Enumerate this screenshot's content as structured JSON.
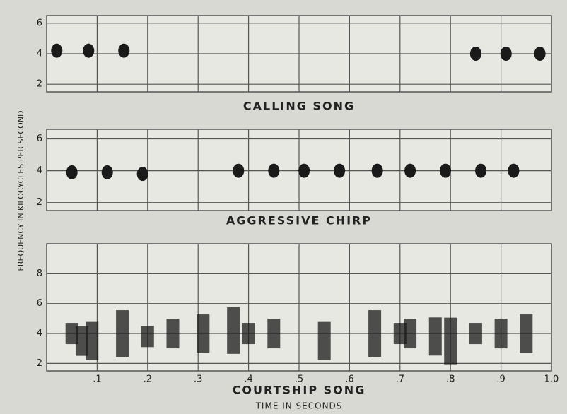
{
  "y_label": "FREQUENCY IN KILOCYCLES PER SECOND",
  "chart_data": [
    {
      "type": "scatter",
      "title": "CALLING SONG",
      "x": [
        0.02,
        0.083,
        0.153,
        0.85,
        0.91,
        0.977
      ],
      "values": [
        4.2,
        4.2,
        4.2,
        4.0,
        4.0,
        4.0
      ],
      "xlim": [
        0,
        1.0
      ],
      "ylim": [
        1.5,
        6.5
      ],
      "yticks": [
        2,
        4,
        6
      ],
      "grid": true,
      "color": "#1a1a1a"
    },
    {
      "type": "scatter",
      "title": "AGGRESSIVE CHIRP",
      "x": [
        0.05,
        0.12,
        0.19,
        0.38,
        0.45,
        0.51,
        0.58,
        0.655,
        0.72,
        0.79,
        0.86,
        0.925
      ],
      "values": [
        3.9,
        3.9,
        3.8,
        4.0,
        4.0,
        4.0,
        4.0,
        4.0,
        4.0,
        4.0,
        4.0,
        4.0
      ],
      "xlim": [
        0,
        1.0
      ],
      "ylim": [
        1.5,
        6.6
      ],
      "yticks": [
        2,
        4,
        6
      ],
      "grid": true,
      "color": "#1a1a1a"
    },
    {
      "type": "spectrogram",
      "title": "COURTSHIP SONG",
      "x_label": "TIME IN SECONDS",
      "x": [
        0.05,
        0.07,
        0.09,
        0.15,
        0.2,
        0.25,
        0.31,
        0.37,
        0.4,
        0.45,
        0.55,
        0.65,
        0.7,
        0.72,
        0.77,
        0.8,
        0.85,
        0.9,
        0.95
      ],
      "values": [
        4,
        3.5,
        3.5,
        4,
        3.8,
        4,
        4,
        4.2,
        4,
        4,
        3.5,
        4,
        4,
        4,
        3.8,
        3.5,
        4,
        4,
        4
      ],
      "xlim": [
        0,
        1.0
      ],
      "ylim": [
        1.5,
        10
      ],
      "xticks": [
        {
          "value": 0.1,
          "label": ".1"
        },
        {
          "value": 0.2,
          "label": ".2"
        },
        {
          "value": 0.3,
          "label": ".3"
        },
        {
          "value": 0.4,
          "label": ".4"
        },
        {
          "value": 0.5,
          "label": ".5"
        },
        {
          "value": 0.6,
          "label": ".6"
        },
        {
          "value": 0.7,
          "label": ".7"
        },
        {
          "value": 0.8,
          "label": ".8"
        },
        {
          "value": 0.9,
          "label": ".9"
        },
        {
          "value": 1.0,
          "label": "1.0"
        }
      ],
      "yticks": [
        2,
        4,
        6,
        8
      ],
      "grid": true,
      "color": "#1a1a1a"
    }
  ]
}
